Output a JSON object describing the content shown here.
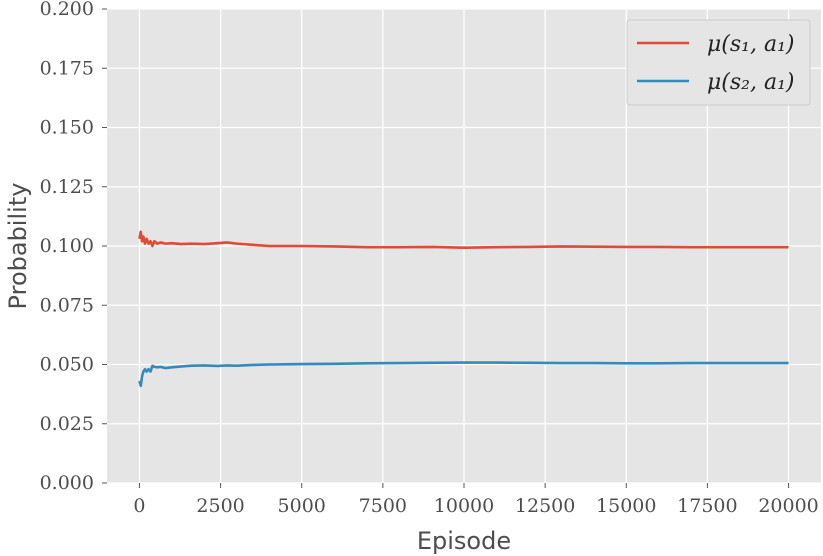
{
  "chart_data": {
    "type": "line",
    "title": "",
    "xlabel": "Episode",
    "ylabel": "Probability",
    "xlim": [
      -1000,
      21000
    ],
    "ylim": [
      0.0,
      0.2
    ],
    "xticks": [
      0,
      2500,
      5000,
      7500,
      10000,
      12500,
      15000,
      17500,
      20000
    ],
    "xtick_labels": [
      "0",
      "2500",
      "5000",
      "7500",
      "10000",
      "12500",
      "15000",
      "17500",
      "20000"
    ],
    "yticks": [
      0.0,
      0.025,
      0.05,
      0.075,
      0.1,
      0.125,
      0.15,
      0.175,
      0.2
    ],
    "ytick_labels": [
      "0.000",
      "0.025",
      "0.050",
      "0.075",
      "0.100",
      "0.125",
      "0.150",
      "0.175",
      "0.200"
    ],
    "grid": true,
    "legend_position": "top-right",
    "series": [
      {
        "name": "μ(s₁, a₁)",
        "color": "#e24a33",
        "x": [
          0,
          40,
          80,
          120,
          170,
          220,
          280,
          340,
          400,
          460,
          550,
          650,
          800,
          1000,
          1300,
          1600,
          2000,
          2400,
          2700,
          3000,
          3500,
          4000,
          5000,
          6000,
          7000,
          8000,
          9000,
          10000,
          11000,
          12000,
          13000,
          14000,
          15000,
          16000,
          17000,
          18000,
          19000,
          20000
        ],
        "y": [
          0.103,
          0.106,
          0.102,
          0.104,
          0.101,
          0.103,
          0.101,
          0.102,
          0.1,
          0.102,
          0.101,
          0.1015,
          0.101,
          0.1012,
          0.1008,
          0.101,
          0.1008,
          0.1012,
          0.1015,
          0.101,
          0.1005,
          0.1,
          0.1,
          0.0998,
          0.0995,
          0.0995,
          0.0996,
          0.0993,
          0.0995,
          0.0996,
          0.0998,
          0.0997,
          0.0996,
          0.0996,
          0.0995,
          0.0995,
          0.0995,
          0.0995
        ]
      },
      {
        "name": "μ(s₂, a₁)",
        "color": "#348abd",
        "x": [
          0,
          40,
          80,
          120,
          170,
          220,
          280,
          340,
          400,
          460,
          550,
          650,
          800,
          1000,
          1300,
          1600,
          2000,
          2400,
          2700,
          3000,
          3500,
          4000,
          5000,
          6000,
          7000,
          8000,
          9000,
          10000,
          11000,
          12000,
          13000,
          14000,
          15000,
          16000,
          17000,
          18000,
          19000,
          20000
        ],
        "y": [
          0.043,
          0.041,
          0.045,
          0.047,
          0.048,
          0.047,
          0.048,
          0.047,
          0.0495,
          0.049,
          0.0488,
          0.049,
          0.0485,
          0.0488,
          0.0492,
          0.0495,
          0.0496,
          0.0494,
          0.0496,
          0.0495,
          0.0498,
          0.05,
          0.0502,
          0.0503,
          0.0505,
          0.0506,
          0.0507,
          0.0508,
          0.0508,
          0.0507,
          0.0506,
          0.0506,
          0.0505,
          0.0505,
          0.0506,
          0.0506,
          0.0506,
          0.0506
        ]
      }
    ]
  }
}
